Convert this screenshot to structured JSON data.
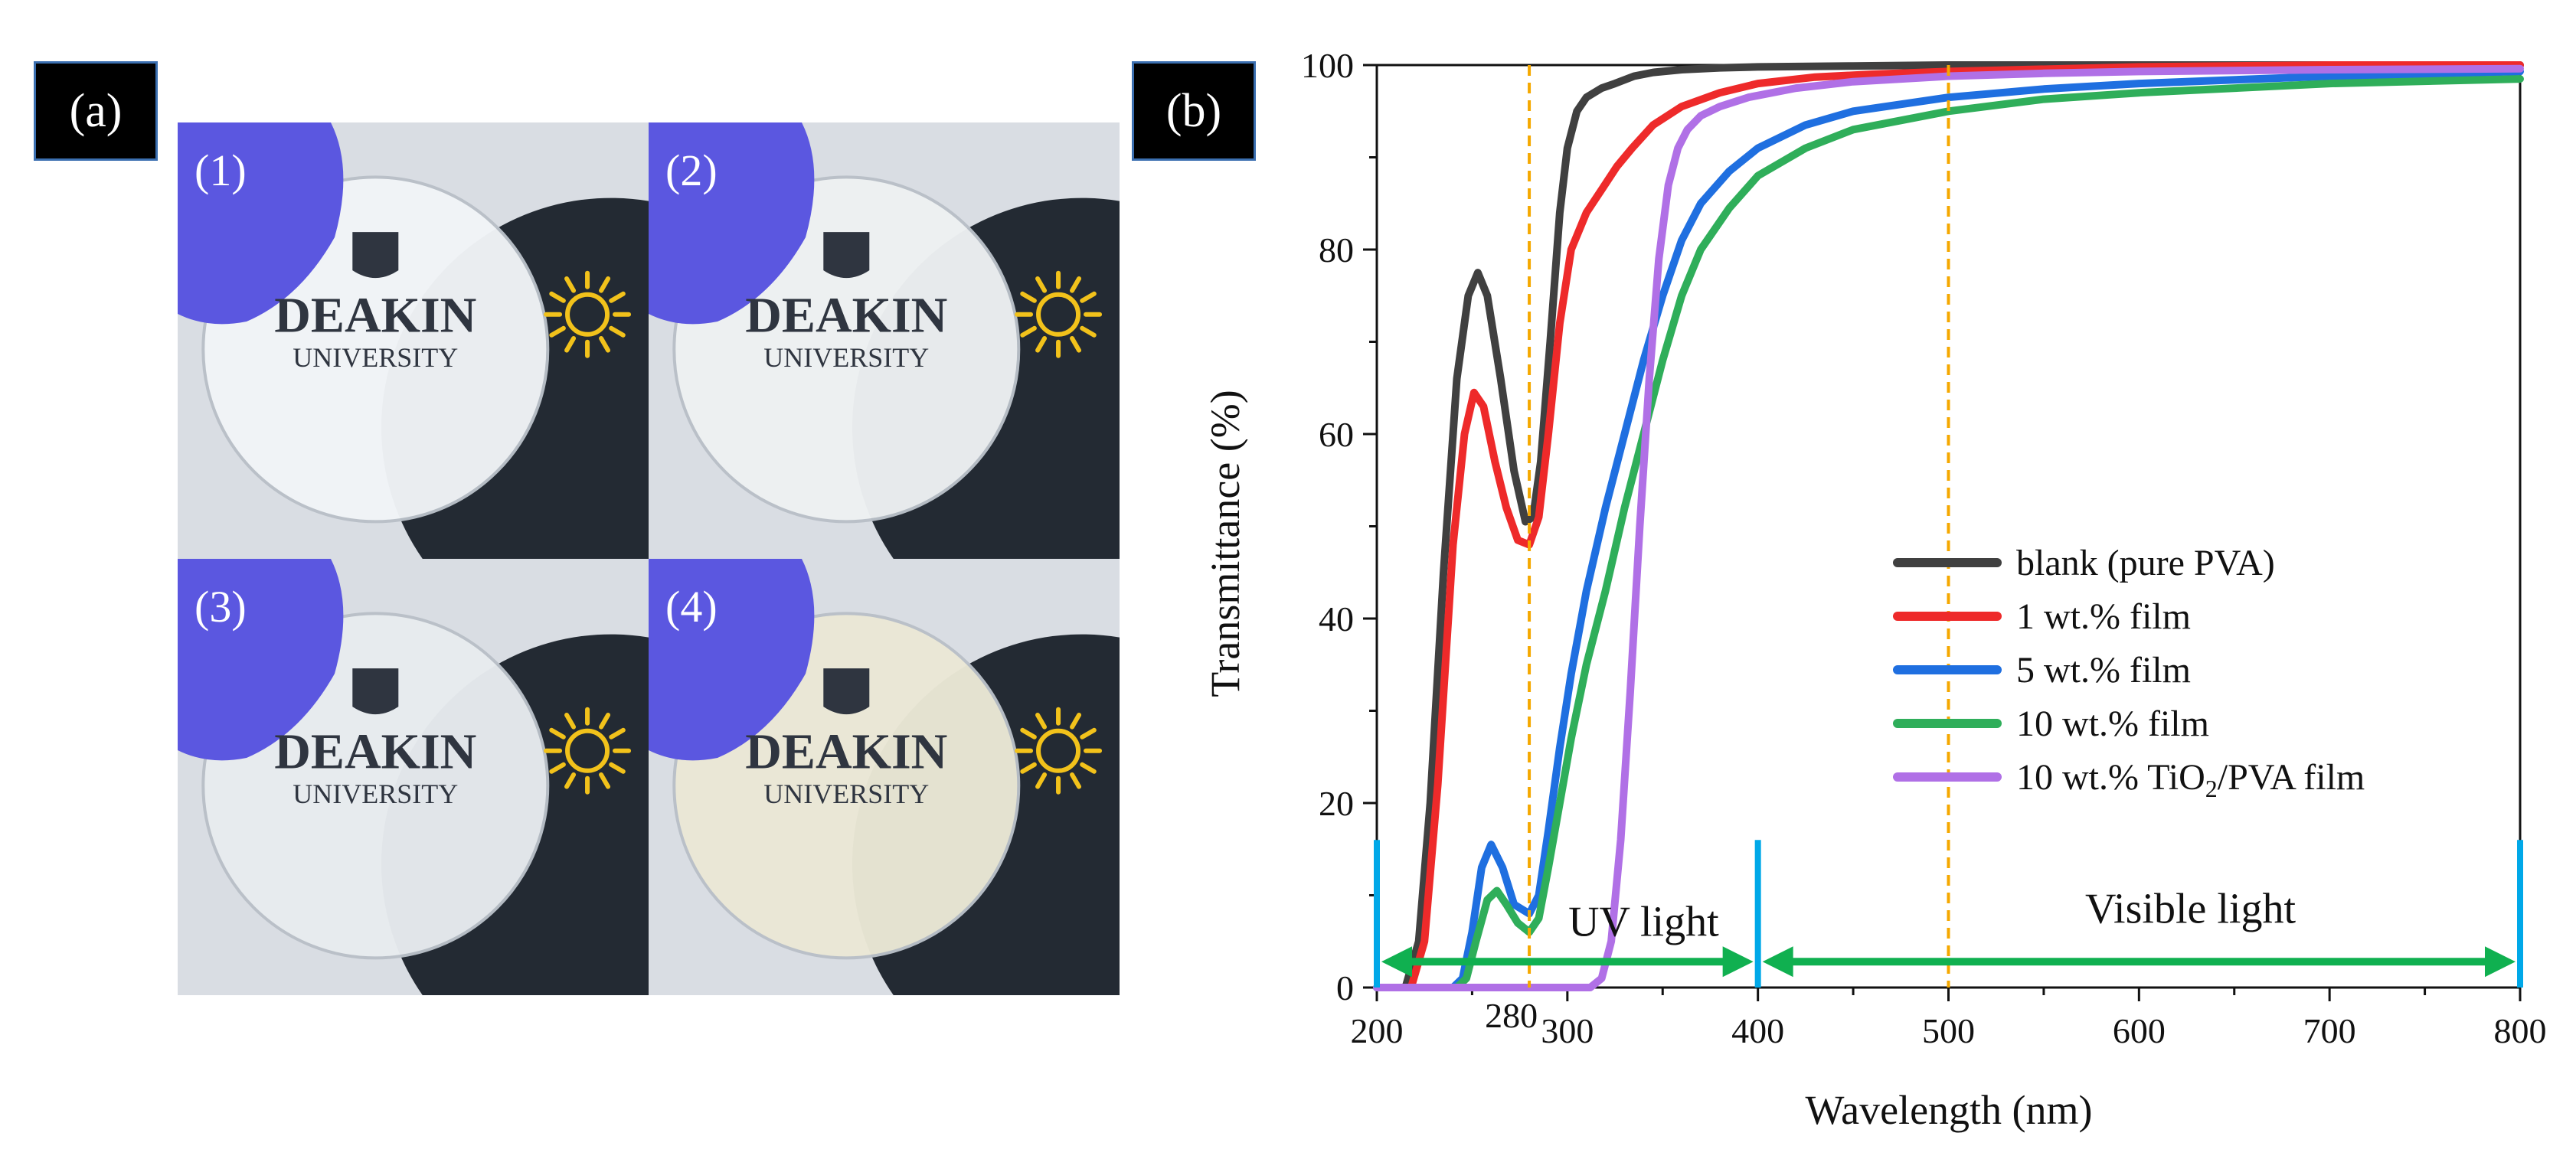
{
  "panel_a": {
    "tag": "(a)",
    "photos": [
      {
        "label": "(1)",
        "logo_top": "DEAKIN",
        "logo_bottom": "UNIVERSITY",
        "film": "#f1f4f7"
      },
      {
        "label": "(2)",
        "logo_top": "DEAKIN",
        "logo_bottom": "UNIVERSITY",
        "film": "#eef1f2"
      },
      {
        "label": "(3)",
        "logo_top": "DEAKIN",
        "logo_bottom": "UNIVERSITY",
        "film": "#e8ecef"
      },
      {
        "label": "(4)",
        "logo_top": "DEAKIN",
        "logo_bottom": "UNIVERSITY",
        "film": "#ebe8d6"
      }
    ],
    "sun_color": "#f2c21b",
    "glove_color": "#5b57e0",
    "board_color": "#232a33"
  },
  "panel_b": {
    "tag": "(b)"
  },
  "chart_data": {
    "type": "line",
    "xlabel": "Wavelength (nm)",
    "ylabel": "Transmittance (%)",
    "xlim": [
      200,
      800
    ],
    "ylim": [
      0,
      100
    ],
    "xticks": [
      200,
      300,
      400,
      500,
      600,
      700,
      800
    ],
    "yticks": [
      0,
      20,
      40,
      60,
      80,
      100
    ],
    "grid": false,
    "legend_position": "center-right",
    "annotations": {
      "marker_280": "280",
      "uv_label": "UV light",
      "vis_label": "Visible light",
      "dashed_lines_x": [
        280,
        500
      ],
      "uv_range": [
        200,
        400
      ],
      "vis_range": [
        400,
        800
      ],
      "region_arrow_color": "#10b050",
      "boundary_color": "#00a8e8",
      "dashed_color": "#f5a800"
    },
    "series": [
      {
        "name": "blank (pure PVA)",
        "color": "#404040",
        "x": [
          200,
          215,
          222,
          228,
          235,
          242,
          248,
          253,
          258,
          265,
          272,
          278,
          282,
          286,
          291,
          296,
          300,
          305,
          310,
          318,
          325,
          335,
          345,
          360,
          380,
          400,
          450,
          500,
          600,
          700,
          800
        ],
        "y": [
          0,
          0,
          5,
          20,
          45,
          66,
          75,
          77.5,
          75,
          66,
          56,
          50.5,
          51,
          57,
          70,
          84,
          91,
          95,
          96.5,
          97.5,
          98,
          98.8,
          99.2,
          99.5,
          99.7,
          99.8,
          99.9,
          100,
          100,
          100,
          100
        ]
      },
      {
        "name": "1 wt.% film",
        "color": "#ee2a2a",
        "x": [
          200,
          218,
          225,
          232,
          240,
          246,
          251,
          256,
          262,
          268,
          274,
          280,
          285,
          290,
          296,
          302,
          310,
          318,
          326,
          334,
          345,
          360,
          380,
          400,
          430,
          460,
          500,
          600,
          700,
          800
        ],
        "y": [
          0,
          0,
          5,
          22,
          48,
          60,
          64.5,
          63,
          57,
          52,
          48.5,
          48,
          51,
          60,
          72,
          80,
          84,
          86.5,
          89,
          91,
          93.5,
          95.5,
          97,
          98,
          98.7,
          99,
          99.3,
          99.8,
          100,
          100
        ]
      },
      {
        "name": "5 wt.% film",
        "color": "#1f6fe0",
        "x": [
          200,
          240,
          245,
          250,
          255,
          260,
          266,
          272,
          280,
          285,
          290,
          296,
          302,
          310,
          320,
          330,
          340,
          350,
          360,
          370,
          385,
          400,
          425,
          450,
          500,
          550,
          600,
          700,
          800
        ],
        "y": [
          0,
          0,
          1,
          6,
          13,
          15.5,
          13,
          9,
          8,
          10,
          17,
          26,
          34,
          43,
          52,
          60,
          68,
          75,
          81,
          85,
          88.5,
          91,
          93.5,
          95,
          96.5,
          97.4,
          98,
          98.8,
          99.3
        ]
      },
      {
        "name": "10 wt.% film",
        "color": "#2fae5a",
        "x": [
          200,
          242,
          247,
          252,
          258,
          263,
          268,
          274,
          280,
          285,
          290,
          296,
          302,
          310,
          320,
          330,
          340,
          350,
          360,
          370,
          385,
          400,
          425,
          450,
          500,
          550,
          600,
          700,
          800
        ],
        "y": [
          0,
          0,
          1,
          5,
          9.5,
          10.5,
          9,
          7,
          6,
          7.5,
          13,
          20,
          27,
          35,
          43,
          52,
          60,
          68,
          75,
          80,
          84.5,
          88,
          91,
          93,
          95,
          96.3,
          97,
          98,
          98.5
        ]
      },
      {
        "name": "10 wt.% TiO2/PVA film",
        "color": "#b070e6",
        "x": [
          200,
          312,
          318,
          323,
          328,
          333,
          338,
          343,
          348,
          353,
          358,
          363,
          370,
          380,
          395,
          420,
          450,
          500,
          550,
          600,
          700,
          800
        ],
        "y": [
          0,
          0,
          1,
          5,
          16,
          32,
          50,
          66,
          79,
          87,
          91,
          93,
          94.5,
          95.5,
          96.5,
          97.5,
          98.2,
          98.8,
          99.1,
          99.3,
          99.5,
          99.6
        ]
      }
    ]
  }
}
